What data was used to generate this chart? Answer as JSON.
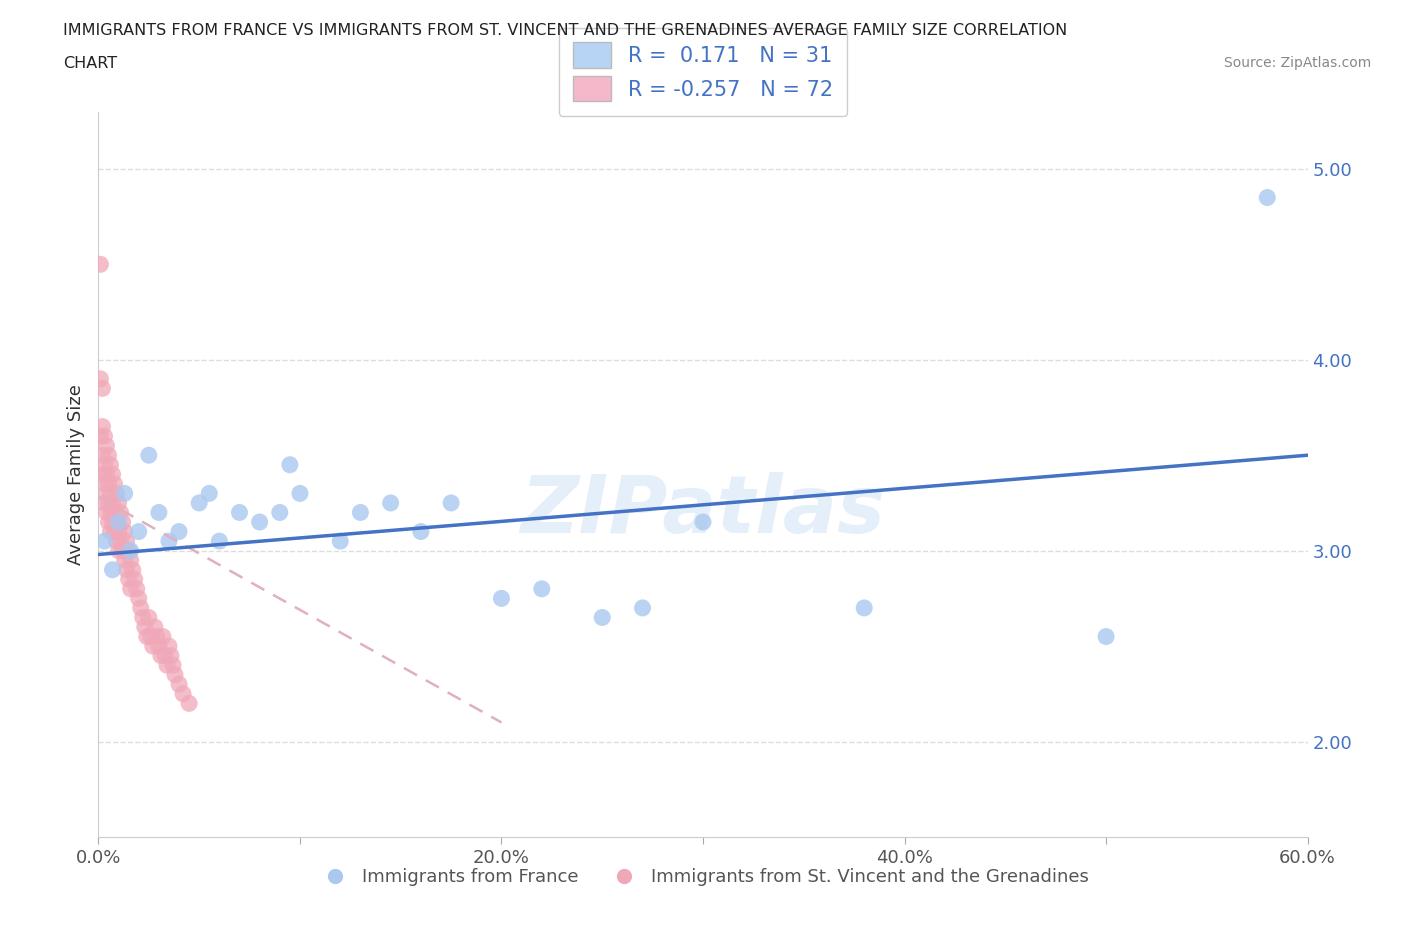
{
  "title_line1": "IMMIGRANTS FROM FRANCE VS IMMIGRANTS FROM ST. VINCENT AND THE GRENADINES AVERAGE FAMILY SIZE CORRELATION",
  "title_line2": "CHART",
  "source_text": "Source: ZipAtlas.com",
  "ylabel": "Average Family Size",
  "xlim": [
    0.0,
    0.6
  ],
  "ylim": [
    1.5,
    5.3
  ],
  "xticks": [
    0.0,
    0.1,
    0.2,
    0.3,
    0.4,
    0.5,
    0.6
  ],
  "xticklabels": [
    "0.0%",
    "",
    "20.0%",
    "",
    "40.0%",
    "",
    "60.0%"
  ],
  "yticks_right": [
    2.0,
    3.0,
    4.0,
    5.0
  ],
  "france_R": 0.171,
  "france_N": 31,
  "svg_R": -0.257,
  "svg_N": 72,
  "france_color": "#aac8f0",
  "svg_color": "#f0a8b8",
  "france_line_color": "#4472c4",
  "svg_line_color": "#e0b0c0",
  "legend_box_color_france": "#b8d4f5",
  "legend_box_color_svg": "#f5b8cb",
  "legend_text_color": "#4472c4",
  "watermark_text": "ZIPatlas",
  "france_x": [
    0.003,
    0.007,
    0.01,
    0.013,
    0.016,
    0.02,
    0.025,
    0.03,
    0.035,
    0.04,
    0.05,
    0.055,
    0.06,
    0.07,
    0.08,
    0.09,
    0.095,
    0.1,
    0.12,
    0.13,
    0.145,
    0.16,
    0.175,
    0.2,
    0.22,
    0.25,
    0.27,
    0.3,
    0.38,
    0.5,
    0.58
  ],
  "france_y": [
    3.05,
    2.9,
    3.15,
    3.3,
    3.0,
    3.1,
    3.5,
    3.2,
    3.05,
    3.1,
    3.25,
    3.3,
    3.05,
    3.2,
    3.15,
    3.2,
    3.45,
    3.3,
    3.05,
    3.2,
    3.25,
    3.1,
    3.25,
    2.75,
    2.8,
    2.65,
    2.7,
    3.15,
    2.7,
    2.55,
    4.85
  ],
  "svg_x": [
    0.001,
    0.001,
    0.001,
    0.002,
    0.002,
    0.002,
    0.002,
    0.003,
    0.003,
    0.003,
    0.003,
    0.004,
    0.004,
    0.004,
    0.004,
    0.005,
    0.005,
    0.005,
    0.005,
    0.006,
    0.006,
    0.006,
    0.006,
    0.007,
    0.007,
    0.007,
    0.008,
    0.008,
    0.008,
    0.009,
    0.009,
    0.009,
    0.01,
    0.01,
    0.01,
    0.011,
    0.011,
    0.012,
    0.012,
    0.013,
    0.013,
    0.014,
    0.014,
    0.015,
    0.015,
    0.016,
    0.016,
    0.017,
    0.018,
    0.019,
    0.02,
    0.021,
    0.022,
    0.023,
    0.024,
    0.025,
    0.026,
    0.027,
    0.028,
    0.029,
    0.03,
    0.031,
    0.032,
    0.033,
    0.034,
    0.035,
    0.036,
    0.037,
    0.038,
    0.04,
    0.042,
    0.045
  ],
  "svg_y": [
    4.5,
    3.9,
    3.6,
    3.85,
    3.65,
    3.5,
    3.4,
    3.6,
    3.45,
    3.35,
    3.25,
    3.55,
    3.4,
    3.3,
    3.2,
    3.5,
    3.35,
    3.25,
    3.15,
    3.45,
    3.3,
    3.2,
    3.1,
    3.4,
    3.25,
    3.15,
    3.35,
    3.2,
    3.1,
    3.3,
    3.15,
    3.05,
    3.25,
    3.1,
    3.0,
    3.2,
    3.05,
    3.15,
    3.0,
    3.1,
    2.95,
    3.05,
    2.9,
    3.0,
    2.85,
    2.95,
    2.8,
    2.9,
    2.85,
    2.8,
    2.75,
    2.7,
    2.65,
    2.6,
    2.55,
    2.65,
    2.55,
    2.5,
    2.6,
    2.55,
    2.5,
    2.45,
    2.55,
    2.45,
    2.4,
    2.5,
    2.45,
    2.4,
    2.35,
    2.3,
    2.25,
    2.2
  ],
  "background_color": "#ffffff",
  "grid_color": "#dddddd",
  "france_line_x0": 0.0,
  "france_line_y0": 2.98,
  "france_line_x1": 0.6,
  "france_line_y1": 3.5,
  "svg_line_x0": 0.0,
  "svg_line_y0": 3.28,
  "svg_line_x1": 0.2,
  "svg_line_y1": 2.1
}
